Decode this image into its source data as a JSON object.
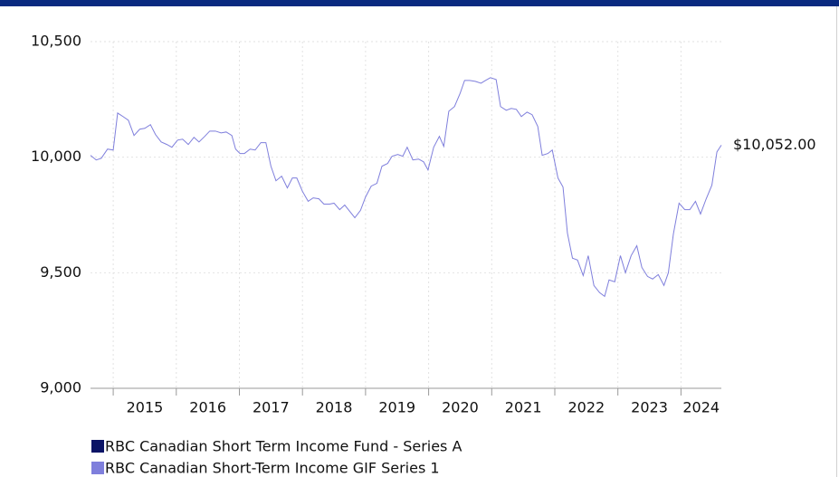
{
  "chart_data": {
    "type": "line",
    "x": [
      2014.64,
      2014.73,
      2014.81,
      2014.91,
      2015.0,
      2015.07,
      2015.16,
      2015.24,
      2015.33,
      2015.42,
      2015.5,
      2015.59,
      2015.67,
      2015.76,
      2015.85,
      2015.93,
      2016.02,
      2016.1,
      2016.19,
      2016.28,
      2016.36,
      2016.45,
      2016.53,
      2016.62,
      2016.71,
      2016.79,
      2016.88,
      2016.94,
      2017.01,
      2017.08,
      2017.17,
      2017.25,
      2017.34,
      2017.42,
      2017.5,
      2017.58,
      2017.67,
      2017.76,
      2017.84,
      2017.91,
      2018.0,
      2018.09,
      2018.17,
      2018.26,
      2018.34,
      2018.43,
      2018.5,
      2018.59,
      2018.67,
      2018.76,
      2018.83,
      2018.92,
      2019.0,
      2019.09,
      2019.18,
      2019.26,
      2019.35,
      2019.42,
      2019.51,
      2019.59,
      2019.66,
      2019.75,
      2019.84,
      2019.92,
      2019.99,
      2020.08,
      2020.17,
      2020.24,
      2020.32,
      2020.41,
      2020.5,
      2020.57,
      2020.65,
      2020.74,
      2020.83,
      2020.9,
      2020.98,
      2021.07,
      2021.14,
      2021.23,
      2021.31,
      2021.39,
      2021.47,
      2021.56,
      2021.64,
      2021.73,
      2021.8,
      2021.89,
      2021.96,
      2022.05,
      2022.13,
      2022.2,
      2022.28,
      2022.36,
      2022.45,
      2022.53,
      2022.62,
      2022.71,
      2022.79,
      2022.86,
      2022.95,
      2023.04,
      2023.12,
      2023.21,
      2023.3,
      2023.38,
      2023.47,
      2023.55,
      2023.64,
      2023.73,
      2023.8,
      2023.88,
      2023.97,
      2024.06,
      2024.14,
      2024.23,
      2024.31,
      2024.4,
      2024.49,
      2024.57,
      2024.64
    ],
    "series": [
      {
        "name": "RBC Canadian Short Term Income Fund - Series A",
        "color": "#0b1466"
      },
      {
        "name": "RBC Canadian Short-Term Income GIF Series 1",
        "color": "#7f7fdc",
        "values": [
          10008,
          9988,
          9995,
          10035,
          10031,
          10191,
          10175,
          10160,
          10094,
          10121,
          10125,
          10141,
          10098,
          10066,
          10055,
          10043,
          10074,
          10078,
          10055,
          10086,
          10066,
          10090,
          10113,
          10113,
          10105,
          10109,
          10094,
          10035,
          10016,
          10016,
          10035,
          10031,
          10063,
          10063,
          9961,
          9898,
          9918,
          9867,
          9910,
          9910,
          9852,
          9809,
          9824,
          9820,
          9797,
          9797,
          9801,
          9773,
          9793,
          9762,
          9738,
          9770,
          9828,
          9875,
          9887,
          9961,
          9973,
          10004,
          10012,
          10004,
          10043,
          9988,
          9992,
          9980,
          9945,
          10043,
          10090,
          10047,
          10199,
          10219,
          10277,
          10332,
          10332,
          10328,
          10320,
          10332,
          10344,
          10336,
          10219,
          10203,
          10211,
          10207,
          10176,
          10195,
          10184,
          10133,
          10008,
          10016,
          10031,
          9910,
          9871,
          9672,
          9563,
          9555,
          9488,
          9574,
          9445,
          9414,
          9398,
          9469,
          9461,
          9574,
          9500,
          9574,
          9617,
          9523,
          9484,
          9473,
          9492,
          9445,
          9500,
          9668,
          9801,
          9773,
          9773,
          9809,
          9754,
          9820,
          9879,
          10023,
          10052
        ],
        "end_label": "$10,052.00"
      }
    ],
    "xlim": [
      2014.64,
      2024.64
    ],
    "xticks": [
      2015,
      2016,
      2017,
      2018,
      2019,
      2020,
      2021,
      2022,
      2023,
      2024
    ],
    "ylim": [
      9000,
      10500
    ],
    "yticks": [
      {
        "value": 9000,
        "label": "9,000"
      },
      {
        "value": 9500,
        "label": "9,500"
      },
      {
        "value": 10000,
        "label": "10,000"
      },
      {
        "value": 10500,
        "label": "10,500"
      }
    ],
    "grid": true
  }
}
